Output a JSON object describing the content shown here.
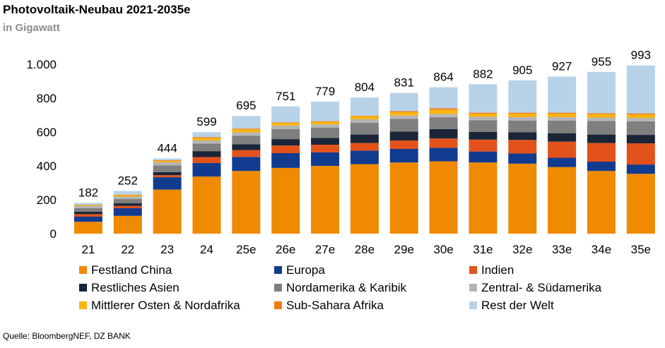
{
  "title": "Photovoltaik-Neubau 2021-2035e",
  "subtitle": "in Gigawatt",
  "source": "Quelle: BloombergNEF, DZ BANK",
  "chart_data": {
    "type": "bar",
    "stacked": true,
    "categories": [
      "21",
      "22",
      "23",
      "24",
      "25e",
      "26e",
      "27e",
      "28e",
      "29e",
      "30e",
      "31e",
      "32e",
      "33e",
      "34e",
      "35e"
    ],
    "totals": [
      182,
      252,
      444,
      599,
      695,
      751,
      779,
      804,
      831,
      864,
      882,
      905,
      927,
      955,
      993
    ],
    "total_labels": [
      "182",
      "252",
      "444",
      "599",
      "695",
      "751",
      "779",
      "804",
      "831",
      "864",
      "882",
      "905",
      "927",
      "955",
      "993"
    ],
    "ylim": [
      0,
      1000
    ],
    "yticks": [
      0,
      200,
      400,
      600,
      800,
      1000
    ],
    "ytick_labels": [
      "0",
      "200",
      "400",
      "600",
      "800",
      "1.000"
    ],
    "grid": false,
    "legend_position": "bottom",
    "series": [
      {
        "name": "Festland China",
        "color": "#f08a00",
        "values": [
          70,
          105,
          260,
          337,
          370,
          388,
          400,
          410,
          420,
          427,
          420,
          413,
          393,
          370,
          353
        ]
      },
      {
        "name": "Europa",
        "color": "#113b8f",
        "values": [
          30,
          45,
          73,
          80,
          83,
          87,
          80,
          80,
          80,
          80,
          65,
          60,
          55,
          55,
          55
        ]
      },
      {
        "name": "Indien",
        "color": "#e3521b",
        "values": [
          15,
          14,
          12,
          35,
          40,
          45,
          45,
          45,
          50,
          55,
          70,
          80,
          95,
          110,
          125
        ]
      },
      {
        "name": "Restliches Asien",
        "color": "#1a2638",
        "values": [
          15,
          15,
          18,
          35,
          35,
          38,
          40,
          50,
          52,
          55,
          45,
          45,
          50,
          50,
          50
        ]
      },
      {
        "name": "Nordamerika & Karibik",
        "color": "#7f7f7f",
        "values": [
          20,
          25,
          40,
          45,
          50,
          60,
          60,
          70,
          75,
          70,
          70,
          70,
          75,
          80,
          80
        ]
      },
      {
        "name": "Zentral- & Südamerika",
        "color": "#b5b5b5",
        "values": [
          15,
          15,
          18,
          18,
          20,
          20,
          20,
          20,
          20,
          20,
          20,
          20,
          20,
          20,
          20
        ]
      },
      {
        "name": "Mittlerer Osten & Nordafrika",
        "color": "#f9b410",
        "values": [
          4,
          8,
          8,
          14,
          17,
          15,
          15,
          18,
          20,
          25,
          18,
          20,
          20,
          20,
          20
        ]
      },
      {
        "name": "Sub-Sahara Afrika",
        "color": "#f07a18",
        "values": [
          2,
          3,
          4,
          6,
          5,
          4,
          4,
          4,
          6,
          8,
          6,
          6,
          6,
          6,
          7
        ]
      },
      {
        "name": "Rest der Welt",
        "color": "#b8d3e8",
        "values": [
          11,
          22,
          11,
          29,
          75,
          94,
          115,
          107,
          108,
          124,
          168,
          191,
          213,
          244,
          283
        ]
      }
    ]
  }
}
